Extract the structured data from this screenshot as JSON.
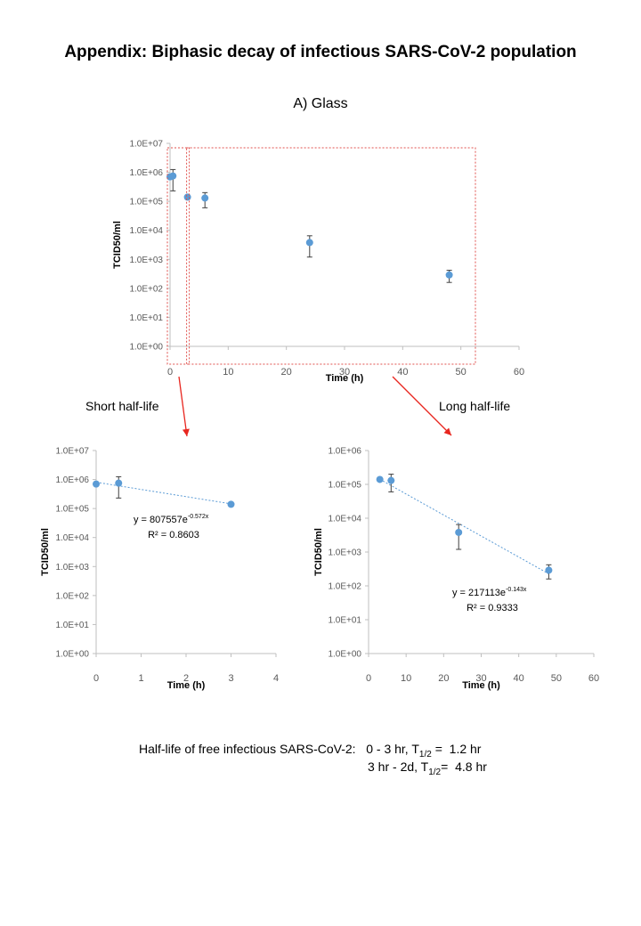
{
  "page": {
    "title": "Appendix: Biphasic decay of infectious SARS-CoV-2 population",
    "subtitle": "A) Glass",
    "short_label": "Short half-life",
    "long_label": "Long half-life",
    "footer": {
      "line1_prefix": "Half-life of free infectious SARS-CoV-2:",
      "line1_range": "0 - 3 hr, T",
      "line1_value": "1.2 hr",
      "line2_range": "3 hr - 2d, T",
      "line2_value": "4.8 hr",
      "sub": "1/2",
      "eq": "="
    },
    "colors": {
      "marker": "#5b9bd5",
      "trend": "#5b9bd5",
      "highlight": "#e0504d",
      "arrow": "#e8261f",
      "axis": "#bfbfbf"
    }
  },
  "chart_data": [
    {
      "id": "main",
      "type": "scatter",
      "xlabel": "Time (h)",
      "ylabel": "TCID50/ml",
      "xlim": [
        0,
        60
      ],
      "xticks": [
        "0",
        "10",
        "20",
        "30",
        "40",
        "50",
        "60"
      ],
      "yscale": "log",
      "ylim_exp": [
        0,
        7
      ],
      "yticks": [
        "1.0E+00",
        "1.0E+01",
        "1.0E+02",
        "1.0E+03",
        "1.0E+04",
        "1.0E+05",
        "1.0E+06",
        "1.0E+07"
      ],
      "points": [
        {
          "x": 0,
          "y": 700000
        },
        {
          "x": 0.5,
          "y": 750000,
          "err_low": 230000,
          "err_high": 1250000
        },
        {
          "x": 3,
          "y": 140000
        },
        {
          "x": 6,
          "y": 130000,
          "err_low": 60000,
          "err_high": 200000
        },
        {
          "x": 24,
          "y": 3800,
          "err_low": 1200,
          "err_high": 6500
        },
        {
          "x": 48,
          "y": 290,
          "err_low": 160,
          "err_high": 420
        }
      ]
    },
    {
      "id": "short",
      "type": "scatter",
      "xlabel": "Time (h)",
      "ylabel": "TCID50/ml",
      "xlim": [
        0,
        4
      ],
      "xticks": [
        "0",
        "1",
        "2",
        "3",
        "4"
      ],
      "yscale": "log",
      "ylim_exp": [
        0,
        7
      ],
      "yticks": [
        "1.0E+00",
        "1.0E+01",
        "1.0E+02",
        "1.0E+03",
        "1.0E+04",
        "1.0E+05",
        "1.0E+06",
        "1.0E+07"
      ],
      "points": [
        {
          "x": 0,
          "y": 700000
        },
        {
          "x": 0.5,
          "y": 750000,
          "err_low": 230000,
          "err_high": 1250000
        },
        {
          "x": 3,
          "y": 140000
        }
      ],
      "trendline": {
        "a": 807557,
        "b": -0.572
      },
      "equation_prefix": "y = 807557e",
      "equation_exp": "-0.572x",
      "r2": "R² = 0.8603"
    },
    {
      "id": "long",
      "type": "scatter",
      "xlabel": "Time (h)",
      "ylabel": "TCID50/ml",
      "xlim": [
        0,
        60
      ],
      "xticks": [
        "0",
        "10",
        "20",
        "30",
        "40",
        "50",
        "60"
      ],
      "yscale": "log",
      "ylim_exp": [
        0,
        6
      ],
      "yticks": [
        "1.0E+00",
        "1.0E+01",
        "1.0E+02",
        "1.0E+03",
        "1.0E+04",
        "1.0E+05",
        "1.0E+06"
      ],
      "points": [
        {
          "x": 3,
          "y": 140000
        },
        {
          "x": 6,
          "y": 130000,
          "err_low": 60000,
          "err_high": 200000
        },
        {
          "x": 24,
          "y": 3800,
          "err_low": 1200,
          "err_high": 6500
        },
        {
          "x": 48,
          "y": 290,
          "err_low": 160,
          "err_high": 420
        }
      ],
      "trendline": {
        "a": 217113,
        "b": -0.143
      },
      "equation_prefix": "y = 217113e",
      "equation_exp": "-0.143x",
      "r2": "R² = 0.9333"
    }
  ]
}
